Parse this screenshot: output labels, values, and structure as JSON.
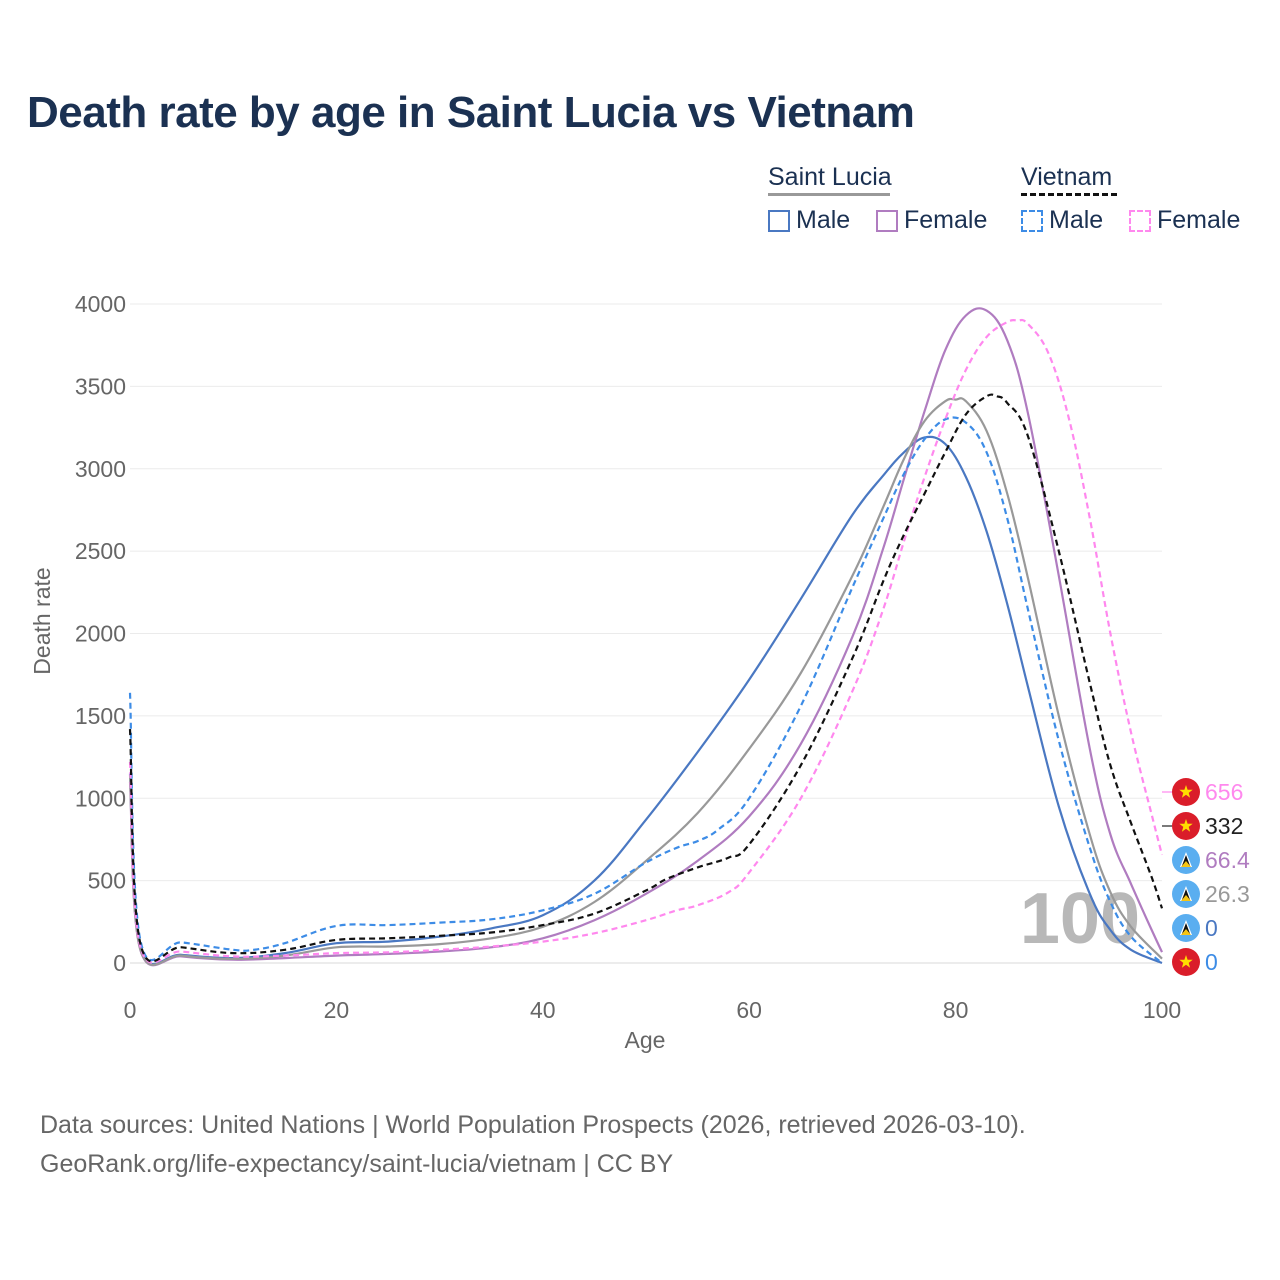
{
  "title": "Death rate by age in Saint Lucia vs Vietnam",
  "legend": {
    "groups": [
      {
        "name": "Saint Lucia",
        "line_color": "#999999",
        "dashed": false,
        "items": [
          {
            "label": "Male",
            "color": "#4a78c2"
          },
          {
            "label": "Female",
            "color": "#b07cc0"
          }
        ]
      },
      {
        "name": "Vietnam",
        "line_color": "#111111",
        "dashed": true,
        "items": [
          {
            "label": "Male",
            "color": "#3d8ce6"
          },
          {
            "label": "Female",
            "color": "#ff88ee"
          }
        ]
      }
    ]
  },
  "chart_data": {
    "type": "line",
    "title": "Death rate by age in Saint Lucia vs Vietnam",
    "xlabel": "Age",
    "ylabel": "Death rate",
    "xlim": [
      0,
      100
    ],
    "ylim": [
      0,
      4000
    ],
    "xticks": [
      0,
      20,
      40,
      60,
      80,
      100
    ],
    "yticks": [
      0,
      500,
      1000,
      1500,
      2000,
      2500,
      3000,
      3500,
      4000
    ],
    "grid": true,
    "year_label": "100",
    "series": [
      {
        "name": "Saint Lucia Male",
        "color": "#4a78c2",
        "dashed": false,
        "x": [
          0,
          1,
          5,
          10,
          15,
          20,
          25,
          30,
          35,
          40,
          45,
          50,
          55,
          60,
          65,
          70,
          73,
          75,
          77,
          79,
          81,
          83,
          85,
          87,
          90,
          93,
          95,
          97,
          100
        ],
        "y": [
          1150,
          90,
          50,
          30,
          60,
          120,
          130,
          160,
          210,
          290,
          500,
          870,
          1280,
          1720,
          2210,
          2720,
          2960,
          3100,
          3190,
          3150,
          2950,
          2620,
          2180,
          1680,
          950,
          420,
          200,
          80,
          0
        ]
      },
      {
        "name": "Saint Lucia Female",
        "color": "#b07cc0",
        "dashed": false,
        "x": [
          0,
          1,
          5,
          10,
          15,
          20,
          25,
          30,
          35,
          40,
          45,
          50,
          55,
          60,
          65,
          70,
          73,
          75,
          77,
          79,
          81,
          83,
          85,
          87,
          90,
          93,
          95,
          97,
          99,
          100
        ],
        "y": [
          1100,
          80,
          40,
          20,
          30,
          45,
          55,
          70,
          95,
          150,
          260,
          420,
          620,
          890,
          1330,
          1980,
          2520,
          2940,
          3350,
          3720,
          3930,
          3960,
          3780,
          3340,
          2350,
          1300,
          780,
          480,
          200,
          66.4
        ]
      },
      {
        "name": "Saint Lucia (total)",
        "color": "#999999",
        "dashed": false,
        "x": [
          0,
          1,
          5,
          10,
          15,
          20,
          25,
          30,
          35,
          40,
          45,
          50,
          55,
          60,
          65,
          70,
          73,
          75,
          77,
          79,
          80,
          81,
          83,
          85,
          87,
          90,
          93,
          95,
          97,
          100
        ],
        "y": [
          1140,
          85,
          45,
          25,
          45,
          95,
          100,
          115,
          150,
          220,
          370,
          620,
          910,
          1300,
          1760,
          2350,
          2770,
          3060,
          3290,
          3410,
          3420,
          3410,
          3230,
          2850,
          2340,
          1500,
          780,
          430,
          220,
          26.3
        ]
      },
      {
        "name": "Vietnam Male",
        "color": "#3d8ce6",
        "dashed": true,
        "x": [
          0,
          1,
          5,
          10,
          12,
          15,
          20,
          25,
          30,
          35,
          40,
          45,
          50,
          53,
          55,
          57,
          60,
          65,
          70,
          73,
          75,
          77,
          79,
          81,
          83,
          85,
          87,
          90,
          93,
          95,
          97,
          100
        ],
        "y": [
          1640,
          140,
          125,
          80,
          80,
          120,
          225,
          230,
          245,
          265,
          320,
          420,
          610,
          700,
          740,
          810,
          1000,
          1560,
          2280,
          2700,
          2970,
          3180,
          3300,
          3280,
          3100,
          2700,
          2150,
          1350,
          700,
          370,
          160,
          0
        ]
      },
      {
        "name": "Vietnam Female",
        "color": "#ff88ee",
        "dashed": true,
        "x": [
          0,
          1,
          5,
          10,
          15,
          20,
          25,
          30,
          35,
          40,
          45,
          50,
          53,
          55,
          58,
          60,
          65,
          70,
          73,
          75,
          77,
          79,
          81,
          83,
          85,
          86,
          87,
          89,
          91,
          93,
          95,
          97,
          99,
          100
        ],
        "y": [
          1220,
          100,
          70,
          40,
          45,
          60,
          65,
          80,
          100,
          130,
          180,
          260,
          320,
          350,
          430,
          550,
          1000,
          1650,
          2150,
          2560,
          2950,
          3300,
          3600,
          3800,
          3890,
          3900,
          3880,
          3700,
          3300,
          2700,
          2000,
          1400,
          900,
          656
        ]
      },
      {
        "name": "Vietnam (total)",
        "color": "#111111",
        "dashed": true,
        "x": [
          0,
          1,
          5,
          10,
          15,
          20,
          25,
          30,
          35,
          40,
          45,
          50,
          52,
          55,
          58,
          60,
          65,
          70,
          73,
          75,
          77,
          79,
          81,
          83,
          84,
          85,
          87,
          90,
          93,
          95,
          97,
          99,
          100
        ],
        "y": [
          1420,
          120,
          95,
          60,
          80,
          140,
          150,
          165,
          185,
          230,
          300,
          440,
          510,
          580,
          640,
          720,
          1200,
          1850,
          2320,
          2600,
          2850,
          3100,
          3330,
          3440,
          3440,
          3400,
          3200,
          2500,
          1700,
          1200,
          850,
          520,
          332
        ]
      }
    ],
    "end_labels": [
      {
        "text": "656",
        "color": "#ff88ee",
        "flag": "vietnam-flag"
      },
      {
        "text": "332",
        "color": "#222222",
        "flag": "vietnam-flag"
      },
      {
        "text": "66.4",
        "color": "#b07cc0",
        "flag": "saint-lucia-flag"
      },
      {
        "text": "26.3",
        "color": "#999999",
        "flag": "saint-lucia-flag"
      },
      {
        "text": "0",
        "color": "#4a78c2",
        "flag": "saint-lucia-flag"
      },
      {
        "text": "0",
        "color": "#3d8ce6",
        "flag": "vietnam-flag"
      }
    ]
  },
  "footer": {
    "line1": "Data sources: United Nations | World Population Prospects (2026, retrieved 2026-03-10).",
    "line2": "GeoRank.org/life-expectancy/saint-lucia/vietnam | CC BY"
  }
}
